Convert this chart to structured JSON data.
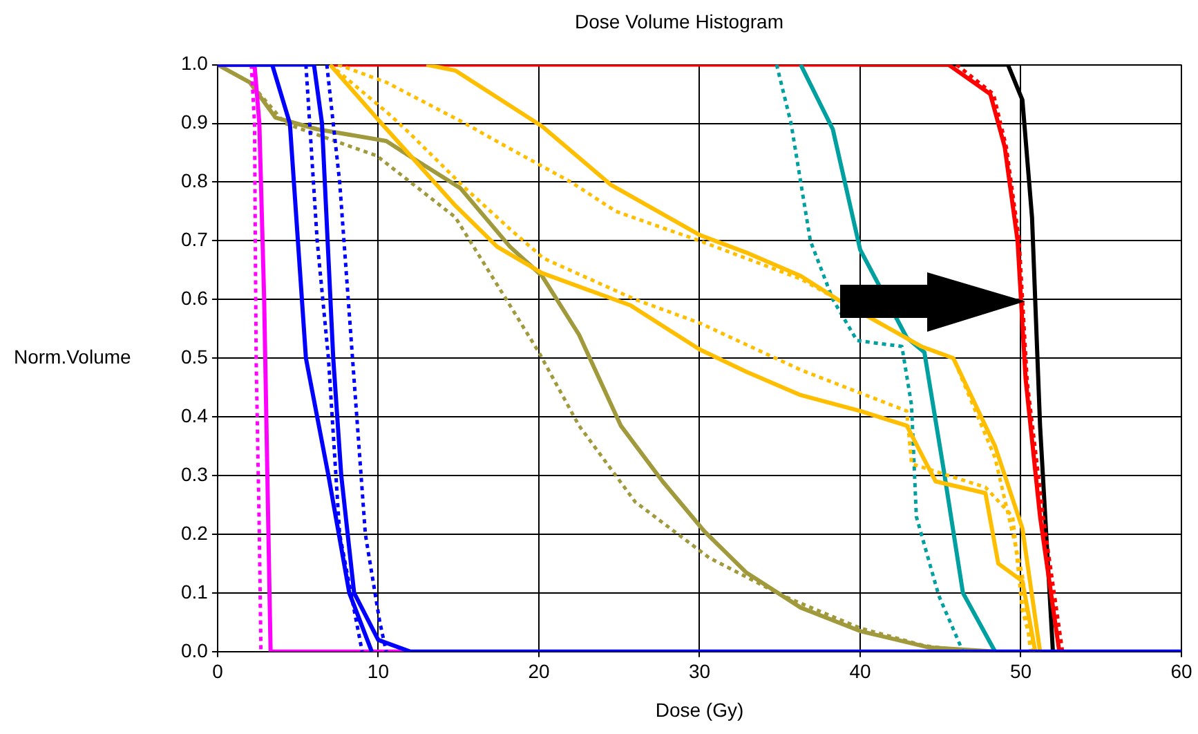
{
  "chart_data": {
    "type": "line",
    "title": "Dose Volume Histogram",
    "xlabel": "Dose (Gy)",
    "ylabel": "Norm.Volume",
    "xlim": [
      0,
      60
    ],
    "xticks": [
      0,
      10,
      20,
      30,
      40,
      50,
      60
    ],
    "ylim": [
      0,
      1
    ],
    "yticks": [
      {
        "value": 0,
        "label": "0.0"
      },
      {
        "value": 0.1,
        "label": "0.1"
      },
      {
        "value": 0.2,
        "label": "0.2"
      },
      {
        "value": 0.3,
        "label": "0.3"
      },
      {
        "value": 0.4,
        "label": "0.4"
      },
      {
        "value": 0.5,
        "label": "0.5"
      },
      {
        "value": 0.6,
        "label": "0.6"
      },
      {
        "value": 0.7,
        "label": "0.7"
      },
      {
        "value": 0.8,
        "label": "0.8"
      },
      {
        "value": 0.9,
        "label": "0.9"
      },
      {
        "value": 1,
        "label": "1.0"
      }
    ],
    "grid": true,
    "legend": false,
    "marker": "none",
    "series": [
      {
        "color": "#000000",
        "line_style": "solid",
        "x": [
          40,
          49.2,
          50.1,
          50.7,
          51.2,
          52
        ],
        "values": [
          1,
          1,
          0.94,
          0.74,
          0.385,
          0
        ]
      },
      {
        "color": "#ff0000",
        "line_style": "dashed",
        "x": [
          46,
          48.3,
          49.1,
          49.9,
          50.4,
          51.4,
          52.6
        ],
        "values": [
          1,
          0.95,
          0.86,
          0.7,
          0.46,
          0.23,
          0
        ]
      },
      {
        "color": "#ff0000",
        "line_style": "solid",
        "x": [
          7,
          45.5,
          48.1,
          49,
          49.8,
          50.3,
          51.2,
          52.4
        ],
        "values": [
          1,
          1,
          0.95,
          0.86,
          0.7,
          0.465,
          0.23,
          0
        ]
      },
      {
        "color": "#a09a3c",
        "line_style": "dashed",
        "x": [
          0,
          2,
          4.2,
          9.9,
          14.8,
          18.2,
          20,
          22.5,
          26,
          30.6,
          35.2,
          40,
          44,
          47
        ],
        "values": [
          1,
          0.97,
          0.9,
          0.845,
          0.74,
          0.59,
          0.51,
          0.385,
          0.255,
          0.16,
          0.095,
          0.04,
          0.01,
          0
        ]
      },
      {
        "color": "#a09a3c",
        "line_style": "solid",
        "x": [
          0,
          2,
          3.6,
          6.2,
          10.5,
          12.2,
          15.1,
          18.2,
          20.2,
          22.5,
          25.1,
          27.7,
          30.3,
          32.9,
          36.3,
          40,
          44.3,
          48.4
        ],
        "values": [
          1,
          0.97,
          0.91,
          0.89,
          0.87,
          0.84,
          0.79,
          0.69,
          0.64,
          0.54,
          0.385,
          0.29,
          0.205,
          0.135,
          0.075,
          0.035,
          0.007,
          0
        ]
      },
      {
        "color": "#00a0a0",
        "line_style": "dashed",
        "x": [
          34.8,
          35.7,
          36.9,
          38.3,
          39.8,
          42.6,
          43.2,
          43.5,
          44.9,
          46.4
        ],
        "values": [
          1,
          0.9,
          0.7,
          0.6,
          0.53,
          0.52,
          0.42,
          0.23,
          0.095,
          0
        ]
      },
      {
        "color": "#00a0a0",
        "line_style": "solid",
        "x": [
          36.3,
          38.3,
          40,
          42.9,
          44,
          45.2,
          46.4,
          48.4
        ],
        "values": [
          1,
          0.89,
          0.685,
          0.535,
          0.51,
          0.31,
          0.1,
          0
        ]
      },
      {
        "color": "#ffbf00",
        "line_style": "dashed",
        "x": [
          7.5,
          10.5,
          15.4,
          18,
          22,
          24.8,
          30,
          36.3,
          38.6,
          43.8,
          45.8,
          48.4,
          50.1,
          50.6
        ],
        "values": [
          1,
          0.97,
          0.9,
          0.86,
          0.8,
          0.75,
          0.7,
          0.635,
          0.6,
          0.52,
          0.5,
          0.33,
          0.13,
          0
        ]
      },
      {
        "color": "#ffbf00",
        "line_style": "dashed",
        "x": [
          7,
          10.5,
          11.7,
          15.4,
          18.2,
          20.3,
          26,
          30,
          36.3,
          42.9,
          43.2,
          47.8,
          49.5,
          50.1,
          50.8
        ],
        "values": [
          1,
          0.92,
          0.89,
          0.79,
          0.72,
          0.67,
          0.6,
          0.56,
          0.48,
          0.41,
          0.32,
          0.28,
          0.23,
          0.07,
          0
        ]
      },
      {
        "color": "#ffbf00",
        "line_style": "solid",
        "x": [
          13,
          14.8,
          20.2,
          24.5,
          30,
          32.9,
          36.3,
          38.6,
          43.8,
          45.8,
          48.4,
          50.1,
          51.2
        ],
        "values": [
          1,
          0.99,
          0.895,
          0.795,
          0.71,
          0.68,
          0.64,
          0.6,
          0.52,
          0.5,
          0.35,
          0.21,
          0
        ]
      },
      {
        "color": "#ffbf00",
        "line_style": "solid",
        "x": [
          7,
          10.2,
          14.8,
          17.4,
          20.2,
          25.7,
          30,
          32.9,
          36.3,
          40,
          42.9,
          44.7,
          47.8,
          48.6,
          50.1,
          50.9
        ],
        "values": [
          1,
          0.9,
          0.76,
          0.69,
          0.645,
          0.59,
          0.515,
          0.477,
          0.437,
          0.41,
          0.385,
          0.29,
          0.27,
          0.15,
          0.12,
          0
        ]
      },
      {
        "color": "#ff00ff",
        "line_style": "dashed",
        "x": [
          2.1,
          2.3,
          2.4,
          2.6,
          2.7
        ],
        "values": [
          1,
          0.9,
          0.5,
          0.2,
          0
        ]
      },
      {
        "color": "#ff00ff",
        "line_style": "solid",
        "x": [
          0,
          2.3,
          2.6,
          2.9,
          3.1,
          3.3,
          12
        ],
        "values": [
          1,
          1,
          0.9,
          0.6,
          0.3,
          0,
          0
        ]
      },
      {
        "color": "#0000ff",
        "line_style": "dashed",
        "x": [
          5.5,
          6.2,
          6.9,
          7.6,
          9
        ],
        "values": [
          1,
          0.7,
          0.5,
          0.2,
          0
        ]
      },
      {
        "color": "#0000ff",
        "line_style": "dashed",
        "x": [
          6.8,
          7.6,
          8.4,
          9.2,
          10.1,
          10.5
        ],
        "values": [
          1,
          0.8,
          0.5,
          0.2,
          0.05,
          0
        ]
      },
      {
        "color": "#0000ff",
        "line_style": "solid",
        "x": [
          0,
          3.4,
          4.5,
          5.5,
          6.9,
          8.2,
          9.6
        ],
        "values": [
          1,
          1,
          0.9,
          0.5,
          0.3,
          0.1,
          0
        ]
      },
      {
        "color": "#0000ff",
        "line_style": "solid",
        "x": [
          0,
          6,
          6.5,
          7.2,
          7.7,
          8.5,
          10,
          12,
          60
        ],
        "values": [
          1,
          1,
          0.9,
          0.5,
          0.3,
          0.1,
          0.02,
          0,
          0
        ]
      }
    ]
  }
}
